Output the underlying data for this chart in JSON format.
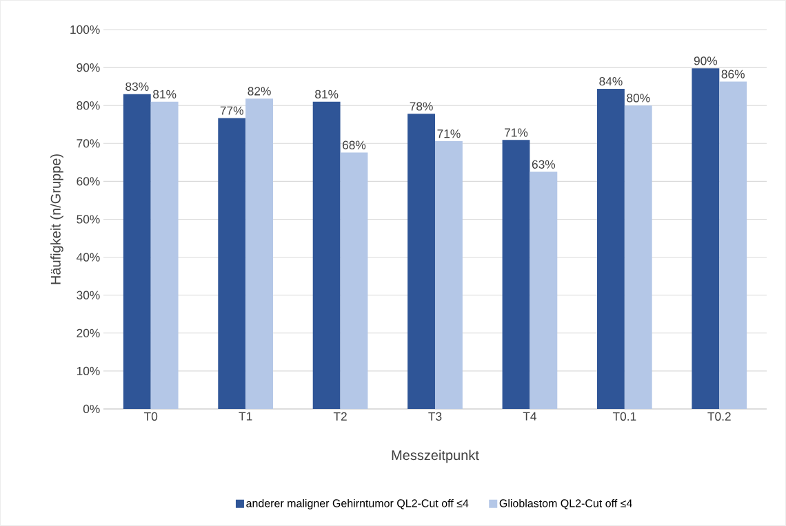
{
  "chart_data": {
    "type": "bar",
    "categories": [
      "T0",
      "T1",
      "T2",
      "T3",
      "T4",
      "T0.1",
      "T0.2"
    ],
    "series": [
      {
        "name": "anderer maligner Gehirntumor QL2-Cut off ≤4",
        "color": "#2f5597",
        "values": [
          83,
          76.7,
          81,
          77.8,
          70.9,
          84.4,
          89.8
        ],
        "value_labels": [
          "83%",
          "77%",
          "81%",
          "78%",
          "71%",
          "84%",
          "90%"
        ]
      },
      {
        "name": "Glioblastom QL2-Cut off ≤4",
        "color": "#b4c7e7",
        "values": [
          81,
          81.8,
          67.6,
          70.6,
          62.5,
          80,
          86.3
        ],
        "value_labels": [
          "81%",
          "82%",
          "68%",
          "71%",
          "63%",
          "80%",
          "86%"
        ]
      }
    ],
    "xlabel": "Messzeitpunkt",
    "ylabel": "Häufigkeit (n/Gruppe)",
    "ylim": [
      0,
      100
    ],
    "yticks": [
      {
        "value": 0,
        "label": "0%"
      },
      {
        "value": 10,
        "label": "10%"
      },
      {
        "value": 20,
        "label": "20%"
      },
      {
        "value": 30,
        "label": "30%"
      },
      {
        "value": 40,
        "label": "40%"
      },
      {
        "value": 50,
        "label": "50%"
      },
      {
        "value": 60,
        "label": "60%"
      },
      {
        "value": 70,
        "label": "70%"
      },
      {
        "value": 80,
        "label": "80%"
      },
      {
        "value": 90,
        "label": "90%"
      },
      {
        "value": 100,
        "label": "100%"
      }
    ],
    "grid": "y",
    "legend": "bottom"
  }
}
